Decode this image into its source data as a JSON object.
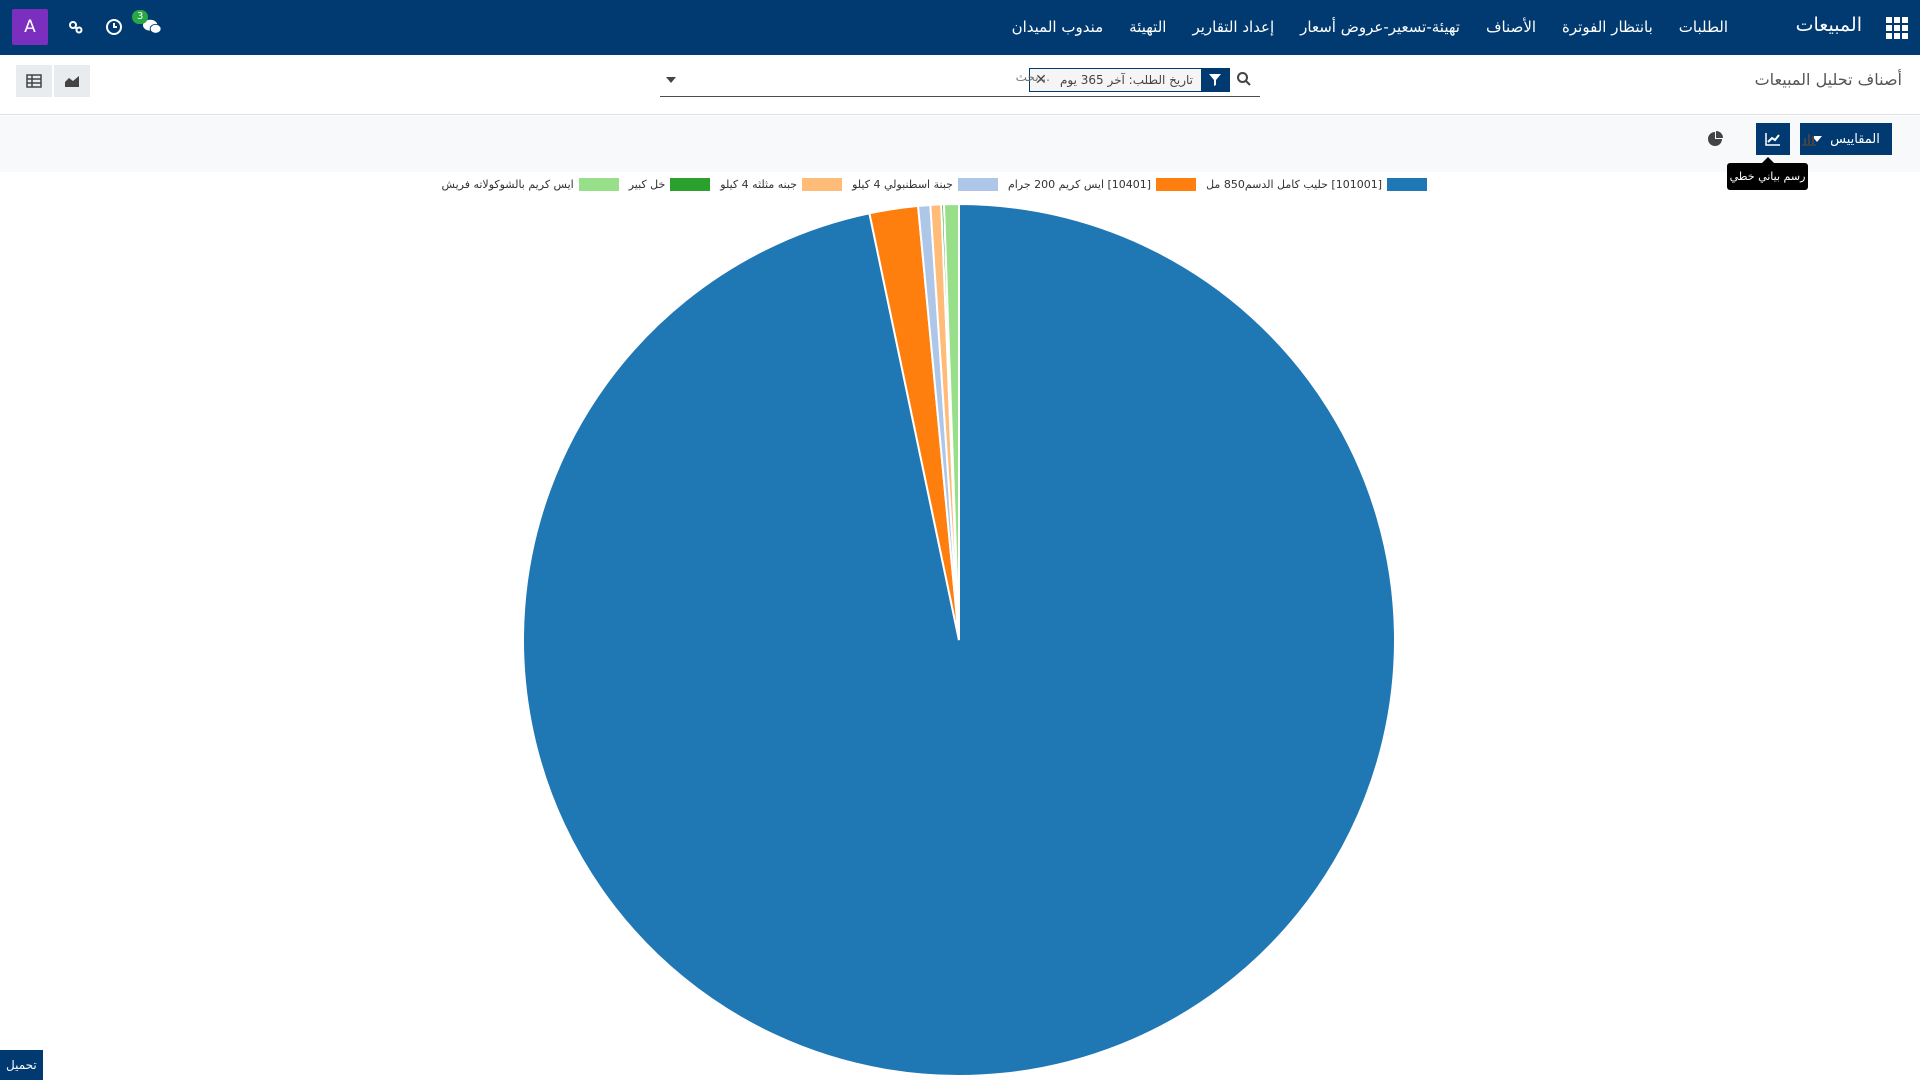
{
  "navbar": {
    "brand": "المبيعات",
    "menu": [
      "الطلبات",
      "بانتظار الفوترة",
      "الأصناف",
      "تهيئة-تسعير-عروض أسعار",
      "إعداد التقارير",
      "التهيئة",
      "مندوب الميدان"
    ],
    "avatar_letter": "A",
    "chat_badge": "3",
    "bg_color": "#003a70"
  },
  "control_panel": {
    "breadcrumb": "أصناف تحليل المبيعات",
    "facet_label": "تاريخ الطلب: آخر 365 يوم",
    "search_placeholder": "بحث..."
  },
  "graph_toolbar": {
    "measures_label": "المقاييس",
    "tooltip": "رسم بياني خطي",
    "modes": [
      "bar-chart-icon",
      "line-chart-icon",
      "pie-chart-icon"
    ],
    "active_mode": "line-chart-icon"
  },
  "chart_data": {
    "type": "pie",
    "labels": [
      "[101001] حليب كامل الدسم850 مل",
      "[10401] ايس كريم 200 جرام",
      "جبنة اسطنبولي  4 كيلو",
      "جبنه مثلثه 4 كيلو",
      "خل كبير",
      "ايس كريم بالشوكولاته فريش"
    ],
    "values": [
      96.9,
      1.8,
      0.45,
      0.4,
      0.1,
      0.55
    ],
    "colors": [
      "#1f77b4",
      "#ff7f0e",
      "#aec7e8",
      "#ffbb78",
      "#2ca02c",
      "#98df8a"
    ],
    "legend_position": "top"
  },
  "footer": {
    "download_label": "تحميل"
  }
}
